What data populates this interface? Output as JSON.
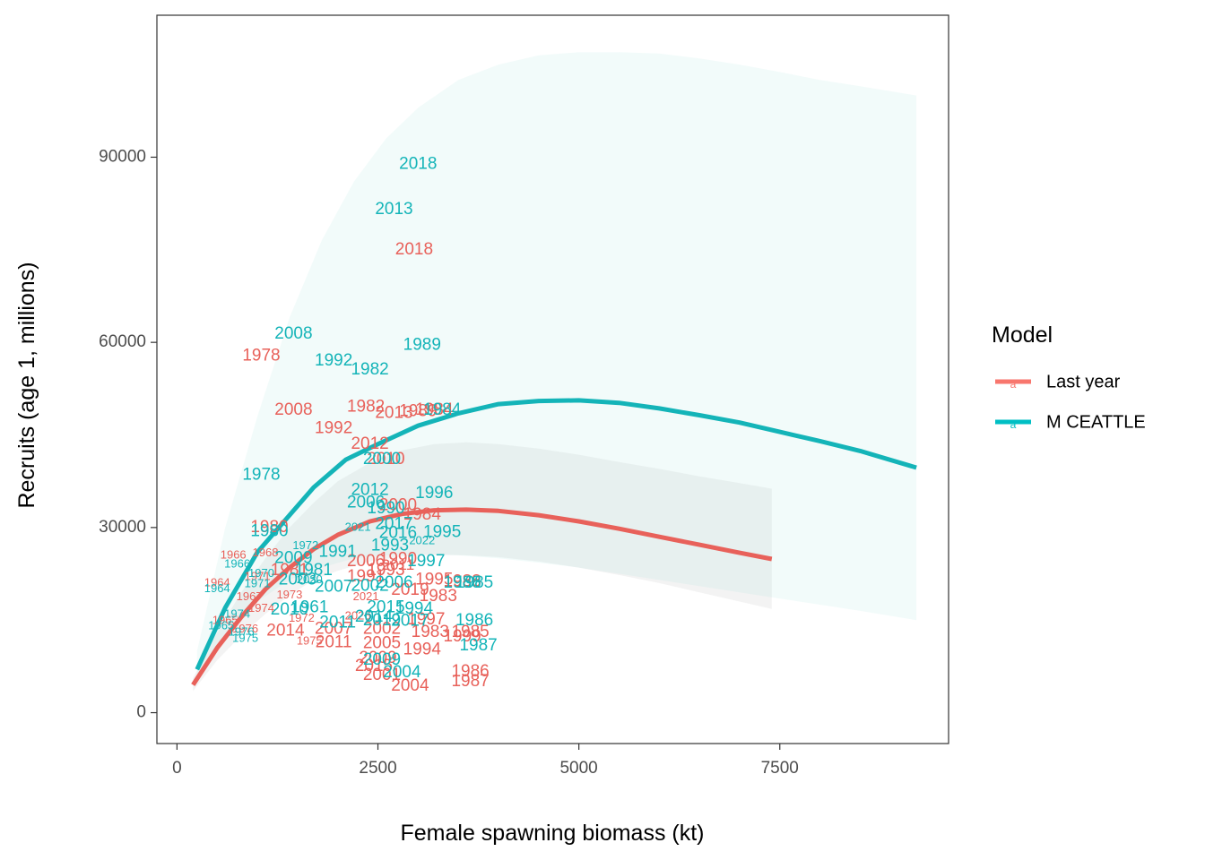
{
  "chart_data": {
    "type": "scatter",
    "title": "",
    "xlabel": "Female spawning biomass (kt)",
    "ylabel": "Recruits (age 1, millions)",
    "xlim": [
      -250,
      9600
    ],
    "ylim": [
      -5000,
      113000
    ],
    "xticks": [
      "0",
      "2500",
      "5000",
      "7500"
    ],
    "yticks": [
      "0",
      "30000",
      "60000",
      "90000"
    ],
    "xtick_values": [
      0,
      2500,
      5000,
      7500
    ],
    "ytick_values": [
      0,
      30000,
      60000,
      90000
    ],
    "grid": false,
    "legend": {
      "title": "Model",
      "placement": "right",
      "entries": [
        {
          "label": "Last year",
          "color": "#f8766d"
        },
        {
          "label": "M CEATTLE",
          "color": "#00bfc4"
        }
      ]
    },
    "series": [
      {
        "name": "Last year",
        "color": "#e8615a",
        "curve": {
          "x": [
            200,
            500,
            800,
            1100,
            1400,
            1700,
            2000,
            2400,
            2800,
            3200,
            3600,
            4000,
            4500,
            5000,
            5500,
            6000,
            6500,
            7000,
            7400
          ],
          "y": [
            4500,
            10500,
            15500,
            20000,
            23500,
            26500,
            28800,
            31000,
            32200,
            32800,
            32900,
            32700,
            32000,
            31000,
            29800,
            28500,
            27200,
            25900,
            24900
          ]
        },
        "ribbon": {
          "x": [
            200,
            500,
            800,
            1100,
            1400,
            1700,
            2000,
            2400,
            2800,
            3200,
            3600,
            4000,
            4500,
            5000,
            5500,
            6000,
            6500,
            7000,
            7400
          ],
          "lower": [
            3500,
            8500,
            12500,
            16000,
            19000,
            21500,
            23000,
            24500,
            25300,
            25600,
            25500,
            25200,
            24500,
            23500,
            22300,
            21000,
            19500,
            18000,
            16800
          ],
          "upper": [
            5600,
            13000,
            19500,
            25000,
            30000,
            34000,
            37500,
            40500,
            42500,
            43500,
            43800,
            43500,
            42800,
            41800,
            40600,
            39500,
            38300,
            37200,
            36300
          ]
        },
        "points": [
          {
            "year": "2018",
            "x": 2950,
            "y": 75000,
            "size": 19
          },
          {
            "year": "1978",
            "x": 1050,
            "y": 57800,
            "size": 19
          },
          {
            "year": "2008",
            "x": 1450,
            "y": 49000,
            "size": 19
          },
          {
            "year": "1982",
            "x": 2350,
            "y": 49500,
            "size": 19
          },
          {
            "year": "2013",
            "x": 2700,
            "y": 48500,
            "size": 19
          },
          {
            "year": "1989",
            "x": 3000,
            "y": 48800,
            "size": 19
          },
          {
            "year": "1984",
            "x": 3200,
            "y": 49000,
            "size": 19
          },
          {
            "year": "1992",
            "x": 1950,
            "y": 46000,
            "size": 19
          },
          {
            "year": "2012",
            "x": 2400,
            "y": 43500,
            "size": 19
          },
          {
            "year": "2010",
            "x": 2600,
            "y": 41000,
            "size": 19
          },
          {
            "year": "2000",
            "x": 2750,
            "y": 33500,
            "size": 19
          },
          {
            "year": "1984",
            "x": 3050,
            "y": 32000,
            "size": 19
          },
          {
            "year": "1980",
            "x": 1150,
            "y": 30000,
            "size": 19
          },
          {
            "year": "2006",
            "x": 2350,
            "y": 24500,
            "size": 19
          },
          {
            "year": "1990",
            "x": 2750,
            "y": 24800,
            "size": 19
          },
          {
            "year": "2011",
            "x": 2750,
            "y": 23800,
            "size": 17
          },
          {
            "year": "1995",
            "x": 3200,
            "y": 21500,
            "size": 19
          },
          {
            "year": "1988",
            "x": 3550,
            "y": 21200,
            "size": 19
          },
          {
            "year": "2019",
            "x": 2900,
            "y": 19800,
            "size": 19
          },
          {
            "year": "1983",
            "x": 3250,
            "y": 18800,
            "size": 19
          },
          {
            "year": "2021",
            "x": 2350,
            "y": 18700,
            "size": 13
          },
          {
            "year": "2026",
            "x": 2250,
            "y": 15600,
            "size": 13
          },
          {
            "year": "1997",
            "x": 3100,
            "y": 15000,
            "size": 19
          },
          {
            "year": "1983",
            "x": 3150,
            "y": 13000,
            "size": 19
          },
          {
            "year": "1985",
            "x": 3650,
            "y": 13000,
            "size": 19
          },
          {
            "year": "1999",
            "x": 3550,
            "y": 12300,
            "size": 19
          },
          {
            "year": "2002",
            "x": 2550,
            "y": 13500,
            "size": 19
          },
          {
            "year": "2014",
            "x": 1350,
            "y": 13200,
            "size": 19
          },
          {
            "year": "2007",
            "x": 1950,
            "y": 13500,
            "size": 19
          },
          {
            "year": "1972",
            "x": 1550,
            "y": 15200,
            "size": 13
          },
          {
            "year": "2011",
            "x": 1950,
            "y": 11300,
            "size": 19
          },
          {
            "year": "1975",
            "x": 1650,
            "y": 11500,
            "size": 13
          },
          {
            "year": "2005",
            "x": 2550,
            "y": 11200,
            "size": 19
          },
          {
            "year": "1994",
            "x": 3050,
            "y": 10200,
            "size": 19
          },
          {
            "year": "2015",
            "x": 2450,
            "y": 7500,
            "size": 19
          },
          {
            "year": "2009",
            "x": 2500,
            "y": 8800,
            "size": 19
          },
          {
            "year": "2001",
            "x": 2550,
            "y": 6000,
            "size": 19
          },
          {
            "year": "2004",
            "x": 2900,
            "y": 4300,
            "size": 19
          },
          {
            "year": "1986",
            "x": 3650,
            "y": 6600,
            "size": 19
          },
          {
            "year": "1987",
            "x": 3650,
            "y": 5000,
            "size": 19
          },
          {
            "year": "1966",
            "x": 700,
            "y": 25500,
            "size": 13
          },
          {
            "year": "1968",
            "x": 1100,
            "y": 25800,
            "size": 13
          },
          {
            "year": "1964",
            "x": 500,
            "y": 21000,
            "size": 13
          },
          {
            "year": "1967",
            "x": 900,
            "y": 18700,
            "size": 13
          },
          {
            "year": "1974",
            "x": 1050,
            "y": 16800,
            "size": 13
          },
          {
            "year": "1965",
            "x": 600,
            "y": 14900,
            "size": 13
          },
          {
            "year": "1976",
            "x": 850,
            "y": 13500,
            "size": 13
          },
          {
            "year": "1971",
            "x": 1000,
            "y": 22000,
            "size": 13
          },
          {
            "year": "1973",
            "x": 1400,
            "y": 19000,
            "size": 13
          },
          {
            "year": "1991",
            "x": 2350,
            "y": 22000,
            "size": 19
          },
          {
            "year": "1993",
            "x": 2600,
            "y": 23000,
            "size": 19
          },
          {
            "year": "1981",
            "x": 1400,
            "y": 23000,
            "size": 19
          }
        ]
      },
      {
        "name": "M CEATTLE",
        "color": "#14b4b8",
        "curve": {
          "x": [
            250,
            600,
            1000,
            1400,
            1700,
            2100,
            2500,
            3000,
            3500,
            4000,
            4500,
            5000,
            5500,
            6000,
            6500,
            7000,
            7500,
            8000,
            8500,
            9200
          ],
          "y": [
            7000,
            17000,
            26000,
            32000,
            36500,
            41000,
            43500,
            46500,
            48500,
            50000,
            50500,
            50600,
            50200,
            49300,
            48200,
            47000,
            45500,
            44000,
            42400,
            39700
          ]
        },
        "ribbon": {
          "x": [
            250,
            600,
            1000,
            1400,
            1800,
            2200,
            2600,
            3000,
            3500,
            4000,
            4500,
            5000,
            5500,
            6000,
            6500,
            7000,
            7500,
            8000,
            8500,
            9200
          ],
          "lower": [
            5500,
            12500,
            18000,
            21500,
            23500,
            25000,
            25500,
            25700,
            25500,
            25000,
            24300,
            23500,
            22500,
            21500,
            20500,
            19500,
            18500,
            17500,
            16500,
            15000
          ],
          "upper": [
            10000,
            30000,
            48000,
            64000,
            76500,
            86000,
            93000,
            98000,
            102500,
            105000,
            106500,
            107000,
            107000,
            106800,
            106000,
            105000,
            103800,
            102500,
            101500,
            100000
          ]
        },
        "points": [
          {
            "year": "2018",
            "x": 3000,
            "y": 88800,
            "size": 19
          },
          {
            "year": "2013",
            "x": 2700,
            "y": 81500,
            "size": 19
          },
          {
            "year": "2008",
            "x": 1450,
            "y": 61300,
            "size": 19
          },
          {
            "year": "1989",
            "x": 3050,
            "y": 59500,
            "size": 19
          },
          {
            "year": "1992",
            "x": 1950,
            "y": 57000,
            "size": 19
          },
          {
            "year": "1982",
            "x": 2400,
            "y": 55500,
            "size": 19
          },
          {
            "year": "1984",
            "x": 3300,
            "y": 49000,
            "size": 19
          },
          {
            "year": "2000",
            "x": 2550,
            "y": 41000,
            "size": 19
          },
          {
            "year": "1978",
            "x": 1050,
            "y": 38500,
            "size": 19
          },
          {
            "year": "2012",
            "x": 2400,
            "y": 36000,
            "size": 19
          },
          {
            "year": "1996",
            "x": 3200,
            "y": 35500,
            "size": 19
          },
          {
            "year": "2006",
            "x": 2350,
            "y": 34000,
            "size": 19
          },
          {
            "year": "1990",
            "x": 2600,
            "y": 33000,
            "size": 19
          },
          {
            "year": "1980",
            "x": 1150,
            "y": 29300,
            "size": 19
          },
          {
            "year": "2021",
            "x": 2250,
            "y": 30000,
            "size": 13
          },
          {
            "year": "2017",
            "x": 2700,
            "y": 30500,
            "size": 19
          },
          {
            "year": "2022",
            "x": 3050,
            "y": 27800,
            "size": 13
          },
          {
            "year": "1995",
            "x": 3300,
            "y": 29200,
            "size": 19
          },
          {
            "year": "2016",
            "x": 2750,
            "y": 29000,
            "size": 19
          },
          {
            "year": "1972",
            "x": 1600,
            "y": 27000,
            "size": 13
          },
          {
            "year": "1991",
            "x": 2000,
            "y": 26000,
            "size": 19
          },
          {
            "year": "1993",
            "x": 2650,
            "y": 27000,
            "size": 19
          },
          {
            "year": "2009",
            "x": 1450,
            "y": 25000,
            "size": 19
          },
          {
            "year": "1997",
            "x": 3100,
            "y": 24500,
            "size": 19
          },
          {
            "year": "1981",
            "x": 1700,
            "y": 23000,
            "size": 19
          },
          {
            "year": "2003",
            "x": 1500,
            "y": 21500,
            "size": 19
          },
          {
            "year": "1988",
            "x": 3550,
            "y": 21000,
            "size": 19
          },
          {
            "year": "1985",
            "x": 3700,
            "y": 21000,
            "size": 19
          },
          {
            "year": "2007",
            "x": 1950,
            "y": 20300,
            "size": 19
          },
          {
            "year": "2002",
            "x": 2400,
            "y": 20500,
            "size": 19
          },
          {
            "year": "2006",
            "x": 2700,
            "y": 21000,
            "size": 19
          },
          {
            "year": "2020",
            "x": 1650,
            "y": 21500,
            "size": 13
          },
          {
            "year": "1966",
            "x": 750,
            "y": 24000,
            "size": 13
          },
          {
            "year": "1964",
            "x": 500,
            "y": 20000,
            "size": 13
          },
          {
            "year": "1971",
            "x": 1000,
            "y": 20800,
            "size": 13
          },
          {
            "year": "1970",
            "x": 1050,
            "y": 22500,
            "size": 13
          },
          {
            "year": "2010",
            "x": 1400,
            "y": 16600,
            "size": 19
          },
          {
            "year": "1961",
            "x": 1650,
            "y": 17000,
            "size": 19
          },
          {
            "year": "1974",
            "x": 750,
            "y": 15900,
            "size": 13
          },
          {
            "year": "2015",
            "x": 2600,
            "y": 17000,
            "size": 19
          },
          {
            "year": "1994",
            "x": 2950,
            "y": 16800,
            "size": 19
          },
          {
            "year": "2014",
            "x": 2450,
            "y": 15500,
            "size": 19
          },
          {
            "year": "2019",
            "x": 2550,
            "y": 14900,
            "size": 19
          },
          {
            "year": "2017",
            "x": 2900,
            "y": 14800,
            "size": 19
          },
          {
            "year": "2011",
            "x": 2000,
            "y": 14500,
            "size": 19
          },
          {
            "year": "1976",
            "x": 800,
            "y": 13000,
            "size": 13
          },
          {
            "year": "1975",
            "x": 850,
            "y": 12000,
            "size": 13
          },
          {
            "year": "1965",
            "x": 550,
            "y": 14000,
            "size": 13
          },
          {
            "year": "1986",
            "x": 3700,
            "y": 14900,
            "size": 19
          },
          {
            "year": "1987",
            "x": 3750,
            "y": 10800,
            "size": 19
          },
          {
            "year": "2004",
            "x": 2800,
            "y": 6500,
            "size": 19
          },
          {
            "year": "2009",
            "x": 2550,
            "y": 8500,
            "size": 19
          }
        ]
      }
    ]
  }
}
